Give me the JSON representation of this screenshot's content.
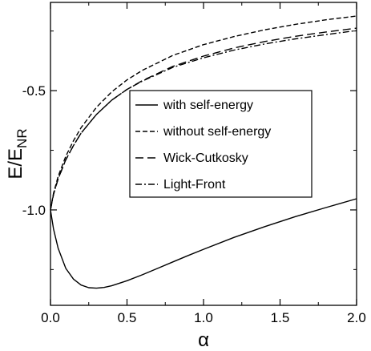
{
  "chart_data": {
    "type": "line",
    "xlabel": "α",
    "ylabel": {
      "main": "E/E",
      "sub": "NR"
    },
    "xlim": [
      0.0,
      2.0
    ],
    "ylim": [
      -1.4,
      -0.13
    ],
    "x_ticks": [
      0.0,
      0.5,
      1.0,
      1.5,
      2.0
    ],
    "x_tick_labels": [
      "0.0",
      "0.5",
      "1.0",
      "1.5",
      "2.0"
    ],
    "y_ticks": [
      -1.0,
      -0.5
    ],
    "y_tick_labels": [
      "-1.0",
      "-0.5"
    ],
    "grid": false,
    "legend_position": "center-right",
    "series": [
      {
        "name": "with self-energy",
        "style": "solid",
        "x": [
          0.0,
          0.02,
          0.05,
          0.1,
          0.15,
          0.2,
          0.25,
          0.3,
          0.35,
          0.4,
          0.5,
          0.6,
          0.7,
          0.8,
          0.9,
          1.0,
          1.2,
          1.4,
          1.6,
          1.8,
          2.0
        ],
        "y": [
          -1.0,
          -1.08,
          -1.16,
          -1.245,
          -1.29,
          -1.315,
          -1.326,
          -1.328,
          -1.325,
          -1.318,
          -1.297,
          -1.272,
          -1.245,
          -1.218,
          -1.191,
          -1.165,
          -1.115,
          -1.07,
          -1.028,
          -0.99,
          -0.953
        ]
      },
      {
        "name": "without self-energy",
        "style": "dashed",
        "x": [
          0.0,
          0.02,
          0.05,
          0.1,
          0.15,
          0.2,
          0.3,
          0.4,
          0.5,
          0.6,
          0.8,
          1.0,
          1.2,
          1.4,
          1.6,
          1.8,
          2.0
        ],
        "y": [
          -1.0,
          -0.93,
          -0.86,
          -0.775,
          -0.71,
          -0.655,
          -0.57,
          -0.505,
          -0.455,
          -0.415,
          -0.352,
          -0.307,
          -0.273,
          -0.245,
          -0.222,
          -0.203,
          -0.187
        ]
      },
      {
        "name": "Wick-Cutkosky",
        "style": "long-dashed",
        "x": [
          0.0,
          0.02,
          0.05,
          0.1,
          0.15,
          0.2,
          0.3,
          0.4,
          0.5,
          0.6,
          0.8,
          1.0,
          1.2,
          1.4,
          1.6,
          1.8,
          2.0
        ],
        "y": [
          -1.0,
          -0.935,
          -0.87,
          -0.79,
          -0.73,
          -0.678,
          -0.6,
          -0.54,
          -0.495,
          -0.458,
          -0.398,
          -0.355,
          -0.321,
          -0.294,
          -0.272,
          -0.254,
          -0.238
        ]
      },
      {
        "name": "Light-Front",
        "style": "dash-dot",
        "x": [
          0.0,
          0.02,
          0.05,
          0.1,
          0.15,
          0.2,
          0.3,
          0.4,
          0.5,
          0.6,
          0.8,
          1.0,
          1.2,
          1.4,
          1.6,
          1.8,
          2.0
        ],
        "y": [
          -1.0,
          -0.935,
          -0.87,
          -0.79,
          -0.73,
          -0.678,
          -0.6,
          -0.54,
          -0.495,
          -0.46,
          -0.402,
          -0.362,
          -0.33,
          -0.304,
          -0.283,
          -0.265,
          -0.248
        ]
      }
    ]
  }
}
